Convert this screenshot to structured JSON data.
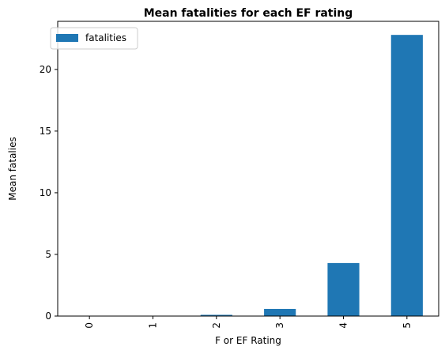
{
  "chart_data": {
    "type": "bar",
    "title": "Mean fatalities for each EF rating",
    "xlabel": "F or EF Rating",
    "ylabel": "Mean fatalies",
    "categories": [
      "0",
      "1",
      "2",
      "3",
      "4",
      "5"
    ],
    "series": [
      {
        "name": "fatalities",
        "color": "#1f77b4",
        "values": [
          0.002,
          0.02,
          0.1,
          0.58,
          4.3,
          22.8
        ]
      }
    ],
    "ylim": [
      0,
      23.9
    ],
    "yticks": [
      0,
      5,
      10,
      15,
      20
    ],
    "xtick_rotation": "vertical",
    "legend_position": "top-left",
    "grid": false
  }
}
